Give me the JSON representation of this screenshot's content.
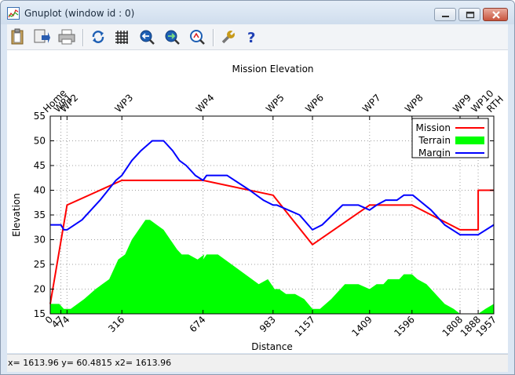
{
  "window": {
    "title": "Gnuplot (window id : 0)"
  },
  "toolbar": {
    "buttons": [
      {
        "name": "copy-clipboard-icon",
        "color": "#2a5db0"
      },
      {
        "name": "print-icon",
        "color": "#2a5db0"
      },
      {
        "name": "printer-icon",
        "color": "#777777"
      },
      {
        "name": "replot-icon",
        "color": "#1e5fb4"
      },
      {
        "name": "grid-icon",
        "color": "#222222"
      },
      {
        "name": "zoom-previous-icon",
        "color": "#1e5fb4"
      },
      {
        "name": "zoom-next-icon",
        "color": "#1e5fb4"
      },
      {
        "name": "autoscale-icon",
        "color": "#1e5fb4"
      },
      {
        "name": "options-wrench-icon",
        "color": "#c79a1a"
      },
      {
        "name": "help-icon",
        "color": "#1e3fb4"
      }
    ]
  },
  "status": {
    "text": "x= 1613.96 y= 60.4815 x2= 1613.96"
  },
  "chart_data": {
    "type": "line",
    "title": "Mission Elevation",
    "xlabel": "Distance",
    "ylabel": "Elevation",
    "xlim": [
      0,
      1957
    ],
    "ylim": [
      15,
      55
    ],
    "grid": true,
    "legend_position": "top-right",
    "yticks": [
      15,
      20,
      25,
      30,
      35,
      40,
      45,
      50,
      55
    ],
    "xticks": [
      {
        "x": 0,
        "label": "0"
      },
      {
        "x": 47,
        "label": "47"
      },
      {
        "x": 74,
        "label": "74"
      },
      {
        "x": 316,
        "label": "316"
      },
      {
        "x": 674,
        "label": "674"
      },
      {
        "x": 983,
        "label": "983"
      },
      {
        "x": 1157,
        "label": "1157"
      },
      {
        "x": 1409,
        "label": "1409"
      },
      {
        "x": 1596,
        "label": "1596"
      },
      {
        "x": 1808,
        "label": "1808"
      },
      {
        "x": 1888,
        "label": "1888"
      },
      {
        "x": 1957,
        "label": "1957"
      }
    ],
    "x2ticks": [
      {
        "x": 0,
        "label": "Home"
      },
      {
        "x": 47,
        "label": "WP1"
      },
      {
        "x": 74,
        "label": "WP2"
      },
      {
        "x": 316,
        "label": "WP3"
      },
      {
        "x": 674,
        "label": "WP4"
      },
      {
        "x": 983,
        "label": "WP5"
      },
      {
        "x": 1157,
        "label": "WP6"
      },
      {
        "x": 1409,
        "label": "WP7"
      },
      {
        "x": 1596,
        "label": "WP8"
      },
      {
        "x": 1808,
        "label": "WP9"
      },
      {
        "x": 1888,
        "label": "WP10"
      },
      {
        "x": 1957,
        "label": "RTH"
      }
    ],
    "series": [
      {
        "name": "Mission",
        "color": "#ff0000",
        "style": "line",
        "x": [
          0,
          74,
          316,
          674,
          983,
          1157,
          1409,
          1596,
          1808,
          1888,
          1888,
          1957
        ],
        "y": [
          17,
          37,
          42,
          42,
          39,
          29,
          37,
          37,
          32,
          32,
          40,
          40
        ]
      },
      {
        "name": "Terrain",
        "color": "#00ff00",
        "style": "filled",
        "x": [
          0,
          40,
          60,
          90,
          150,
          200,
          260,
          300,
          330,
          360,
          390,
          420,
          440,
          470,
          500,
          530,
          560,
          580,
          610,
          650,
          680,
          674,
          690,
          740,
          800,
          860,
          920,
          960,
          990,
          1010,
          1040,
          1080,
          1120,
          1157,
          1190,
          1240,
          1300,
          1360,
          1409,
          1440,
          1470,
          1490,
          1540,
          1560,
          1596,
          1620,
          1660,
          1700,
          1740,
          1780,
          1808,
          1840,
          1888,
          1920,
          1957
        ],
        "y": [
          17,
          17,
          16,
          16,
          18,
          20,
          22,
          26,
          27,
          30,
          32,
          34,
          34,
          33,
          32,
          30,
          28,
          27,
          27,
          26,
          27,
          26,
          27,
          27,
          25,
          23,
          21,
          22,
          20,
          20,
          19,
          19,
          18,
          16,
          16,
          18,
          21,
          21,
          20,
          21,
          21,
          22,
          22,
          23,
          23,
          22,
          21,
          19,
          17,
          16,
          15,
          15,
          15,
          16,
          17
        ]
      },
      {
        "name": "Margin",
        "color": "#0000ff",
        "style": "line",
        "x": [
          0,
          47,
          60,
          74,
          140,
          220,
          290,
          316,
          360,
          400,
          450,
          500,
          540,
          570,
          600,
          640,
          674,
          690,
          780,
          880,
          940,
          983,
          1000,
          1050,
          1100,
          1157,
          1200,
          1290,
          1360,
          1409,
          1440,
          1480,
          1530,
          1560,
          1600,
          1680,
          1740,
          1808,
          1888,
          1957
        ],
        "y": [
          33,
          33,
          32,
          32,
          34,
          38,
          42,
          43,
          46,
          48,
          50,
          50,
          48,
          46,
          45,
          43,
          42,
          43,
          43,
          40,
          38,
          37,
          37,
          36,
          35,
          32,
          33,
          37,
          37,
          36,
          37,
          38,
          38,
          39,
          39,
          36,
          33,
          31,
          31,
          33
        ]
      }
    ]
  }
}
